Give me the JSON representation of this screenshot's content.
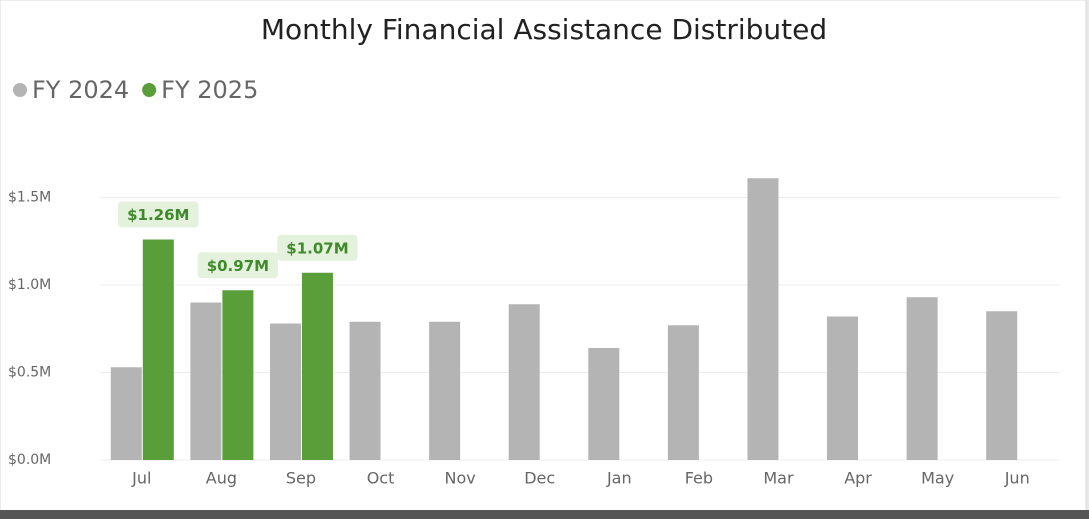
{
  "chart_data": {
    "type": "bar",
    "title": "Monthly Financial Assistance Distributed",
    "categories": [
      "Jul",
      "Aug",
      "Sep",
      "Oct",
      "Nov",
      "Dec",
      "Jan",
      "Feb",
      "Mar",
      "Apr",
      "May",
      "Jun"
    ],
    "series": [
      {
        "name": "FY 2024",
        "color": "#b4b4b4",
        "values": [
          530000,
          900000,
          780000,
          790000,
          790000,
          890000,
          640000,
          770000,
          1610000,
          820000,
          930000,
          850000
        ]
      },
      {
        "name": "FY 2025",
        "color": "#5a9e3a",
        "values": [
          1260000,
          970000,
          1070000,
          null,
          null,
          null,
          null,
          null,
          null,
          null,
          null,
          null
        ],
        "value_labels": [
          "$1.26M",
          "$0.97M",
          "$1.07M",
          null,
          null,
          null,
          null,
          null,
          null,
          null,
          null,
          null
        ]
      }
    ],
    "ylim": [
      0,
      1800000
    ],
    "yticks": [
      {
        "value": 0,
        "label": "$0.0M"
      },
      {
        "value": 500000,
        "label": "$0.5M"
      },
      {
        "value": 1000000,
        "label": "$1.0M"
      },
      {
        "value": 1500000,
        "label": "$1.5M"
      }
    ],
    "grid": true,
    "legend": "top-left"
  }
}
